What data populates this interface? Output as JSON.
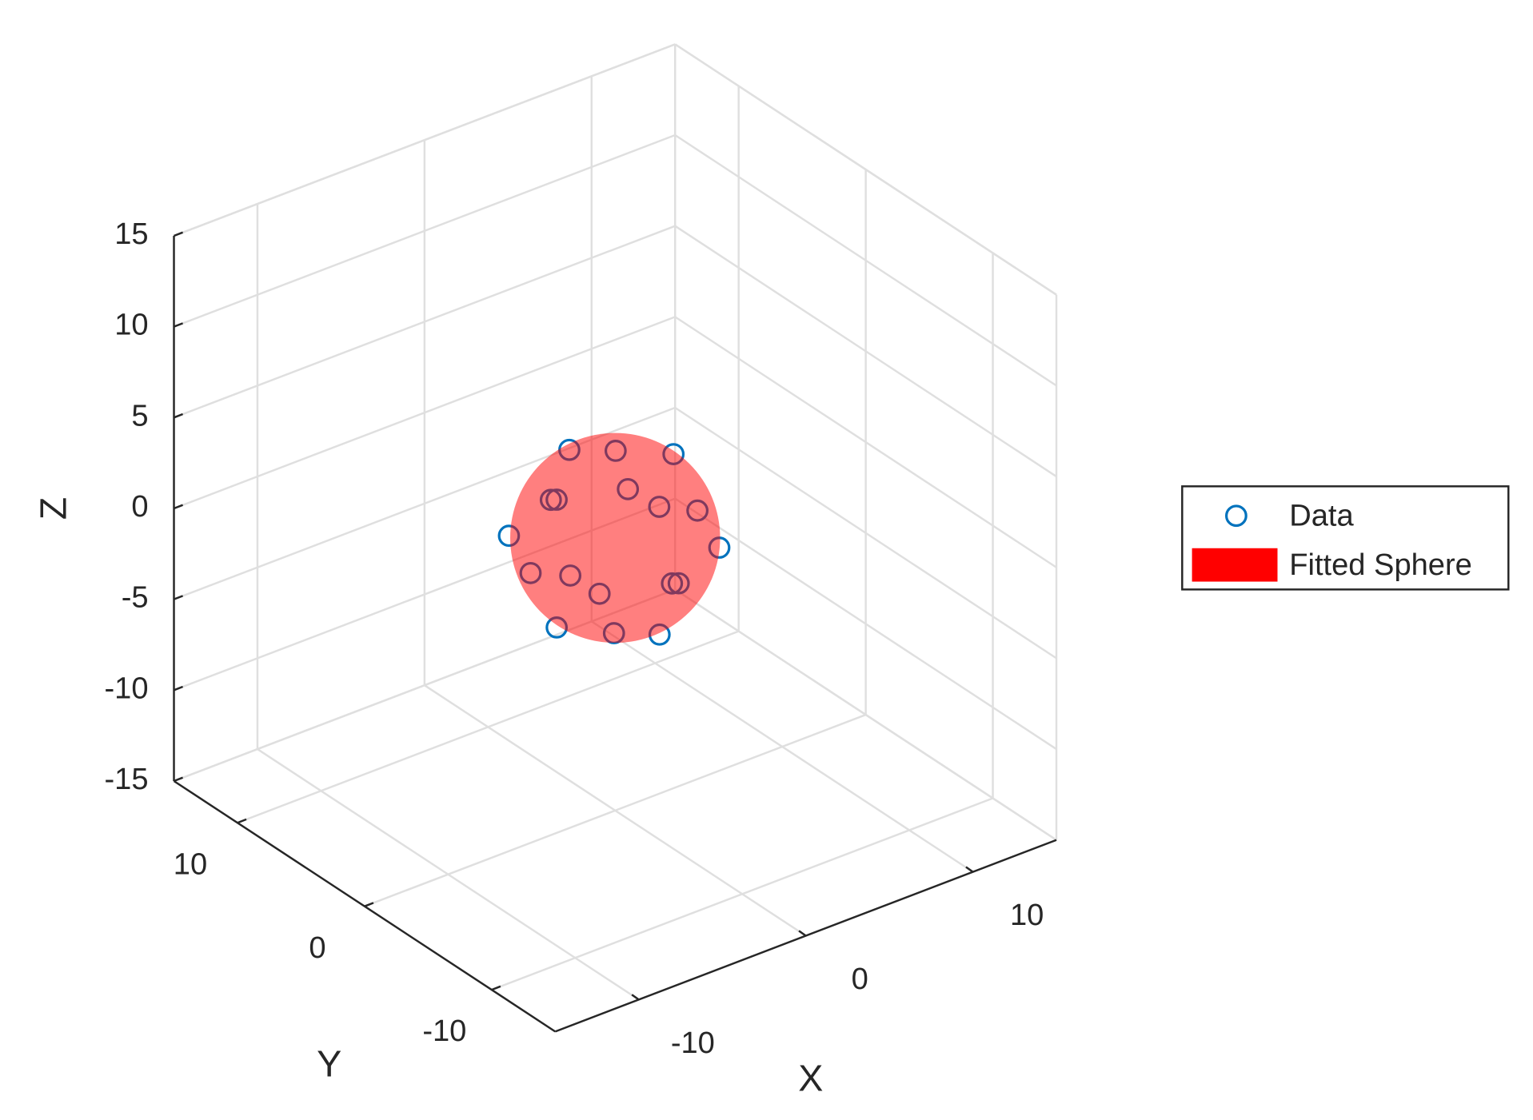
{
  "chart_data": {
    "type": "scatter3d",
    "xlabel": "X",
    "ylabel": "Y",
    "zlabel": "Z",
    "xlim": [
      -15,
      15
    ],
    "ylim": [
      -15,
      15
    ],
    "zlim": [
      -15,
      15
    ],
    "xticks": [
      -10,
      0,
      10
    ],
    "yticks": [
      -10,
      0,
      10
    ],
    "zticks": [
      -15,
      -10,
      -5,
      0,
      5,
      10,
      15
    ],
    "grid": true,
    "legend": "east outside",
    "series": [
      {
        "name": "Data",
        "color": "#0072bd",
        "x": [
          0.3,
          -0.2,
          4.1,
          3.5,
          -3.7,
          0.3,
          -0.1,
          5.0,
          -4.0,
          3.8,
          -2.4,
          -0.1,
          -3.6,
          3.4,
          0.0,
          -3.5,
          -0.3,
          0.3
        ],
        "y": [
          4.0,
          -0.3,
          0.8,
          3.6,
          0.2,
          5.0,
          -3.6,
          0.1,
          3.1,
          -3.2,
          3.5,
          3.4,
          -3.5,
          0.0,
          -5.0,
          0.0,
          -0.3,
          -3.1
        ],
        "z": [
          2.9,
          5.0,
          2.8,
          -0.2,
          3.3,
          -0.3,
          3.4,
          -0.3,
          0.1,
          -0.4,
          -2.7,
          -3.6,
          -0.2,
          -3.7,
          -0.2,
          -3.7,
          -5.0,
          -4.0
        ]
      },
      {
        "name": "Fitted Sphere",
        "color": "#ff0000",
        "opacity": 0.5,
        "center": [
          0,
          0,
          0
        ],
        "radius": 5
      }
    ]
  }
}
